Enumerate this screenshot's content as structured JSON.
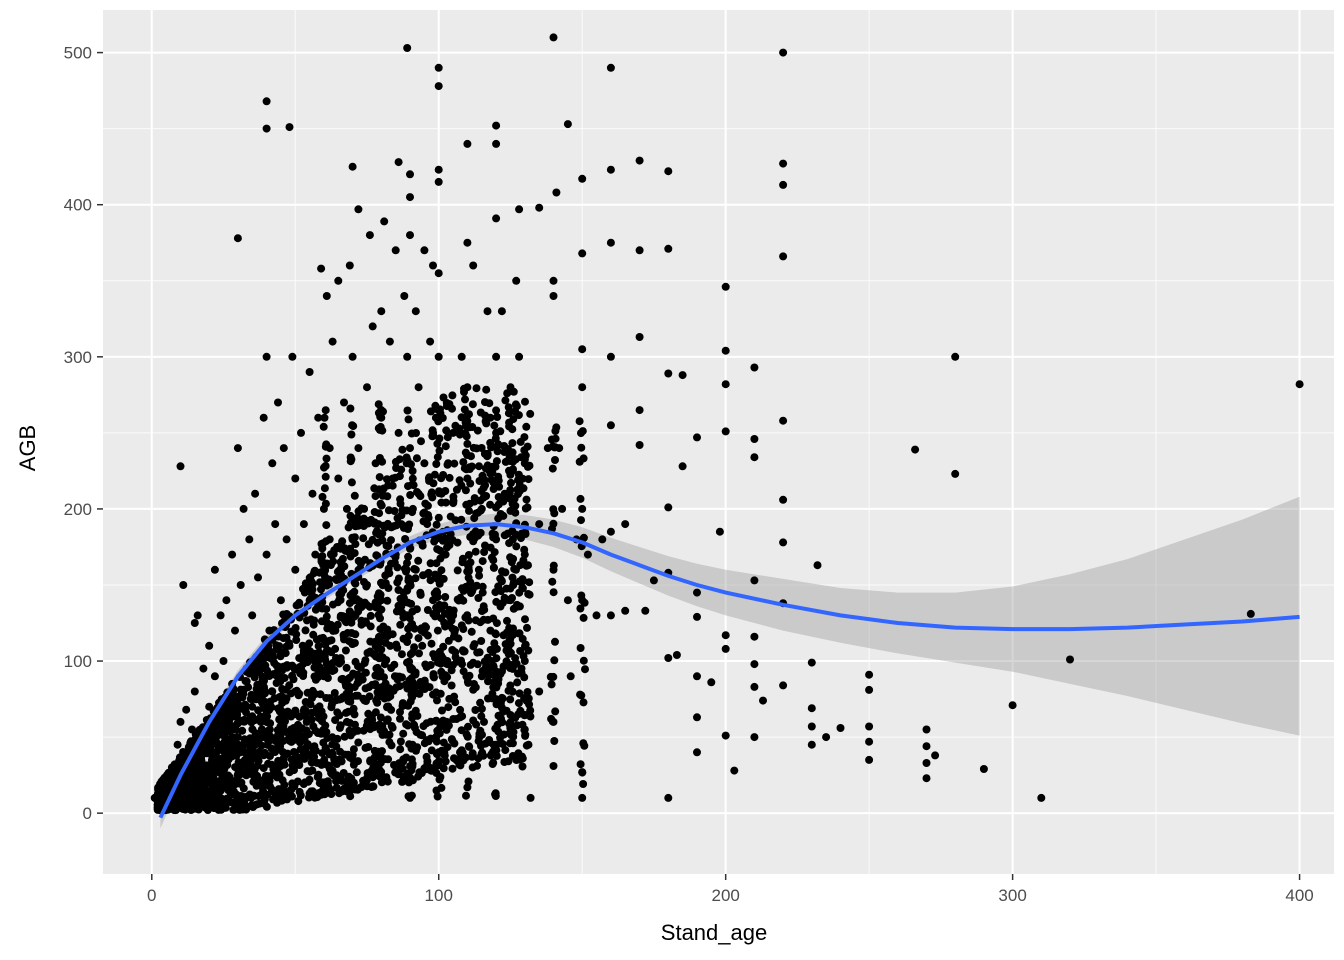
{
  "chart_data": {
    "type": "scatter",
    "title": "",
    "xlabel": "Stand_age",
    "ylabel": "AGB",
    "xlim": [
      -17,
      412
    ],
    "ylim": [
      -40,
      528
    ],
    "x_ticks": [
      0,
      100,
      200,
      300,
      400
    ],
    "x_tick_labels": [
      "0",
      "100",
      "200",
      "300",
      "400"
    ],
    "y_ticks": [
      0,
      100,
      200,
      300,
      400,
      500
    ],
    "y_tick_labels": [
      "0",
      "100",
      "200",
      "300",
      "400",
      "500"
    ],
    "grid": true,
    "legend": "none",
    "colors": {
      "panel_background": "#ebebeb",
      "grid_major": "#ffffff",
      "points": "#000000",
      "smooth_line": "#3366ff",
      "confidence_band": "#999999"
    },
    "smooth_curve": [
      {
        "x": 3,
        "y": -3,
        "ci_low": -10,
        "ci_high": 5
      },
      {
        "x": 10,
        "y": 25,
        "ci_low": 20,
        "ci_high": 30
      },
      {
        "x": 20,
        "y": 60,
        "ci_low": 56,
        "ci_high": 64
      },
      {
        "x": 30,
        "y": 90,
        "ci_low": 87,
        "ci_high": 94
      },
      {
        "x": 40,
        "y": 113,
        "ci_low": 110,
        "ci_high": 117
      },
      {
        "x": 50,
        "y": 130,
        "ci_low": 127,
        "ci_high": 133
      },
      {
        "x": 60,
        "y": 143,
        "ci_low": 140,
        "ci_high": 146
      },
      {
        "x": 70,
        "y": 155,
        "ci_low": 152,
        "ci_high": 158
      },
      {
        "x": 80,
        "y": 167,
        "ci_low": 163,
        "ci_high": 170
      },
      {
        "x": 90,
        "y": 178,
        "ci_low": 174,
        "ci_high": 182
      },
      {
        "x": 100,
        "y": 185,
        "ci_low": 180,
        "ci_high": 190
      },
      {
        "x": 110,
        "y": 189,
        "ci_low": 183,
        "ci_high": 195
      },
      {
        "x": 120,
        "y": 190,
        "ci_low": 182,
        "ci_high": 197
      },
      {
        "x": 130,
        "y": 188,
        "ci_low": 180,
        "ci_high": 196
      },
      {
        "x": 140,
        "y": 184,
        "ci_low": 175,
        "ci_high": 193
      },
      {
        "x": 150,
        "y": 178,
        "ci_low": 168,
        "ci_high": 188
      },
      {
        "x": 160,
        "y": 170,
        "ci_low": 159,
        "ci_high": 181
      },
      {
        "x": 170,
        "y": 163,
        "ci_low": 151,
        "ci_high": 175
      },
      {
        "x": 180,
        "y": 156,
        "ci_low": 143,
        "ci_high": 169
      },
      {
        "x": 190,
        "y": 150,
        "ci_low": 136,
        "ci_high": 164
      },
      {
        "x": 200,
        "y": 145,
        "ci_low": 130,
        "ci_high": 160
      },
      {
        "x": 220,
        "y": 137,
        "ci_low": 120,
        "ci_high": 154
      },
      {
        "x": 240,
        "y": 130,
        "ci_low": 112,
        "ci_high": 148
      },
      {
        "x": 260,
        "y": 125,
        "ci_low": 105,
        "ci_high": 145
      },
      {
        "x": 280,
        "y": 122,
        "ci_low": 99,
        "ci_high": 145
      },
      {
        "x": 300,
        "y": 121,
        "ci_low": 93,
        "ci_high": 149
      },
      {
        "x": 320,
        "y": 121,
        "ci_low": 85,
        "ci_high": 157
      },
      {
        "x": 340,
        "y": 122,
        "ci_low": 77,
        "ci_high": 167
      },
      {
        "x": 360,
        "y": 124,
        "ci_low": 68,
        "ci_high": 180
      },
      {
        "x": 380,
        "y": 126,
        "ci_low": 59,
        "ci_high": 193
      },
      {
        "x": 400,
        "y": 129,
        "ci_low": 51,
        "ci_high": 208
      }
    ],
    "points": [
      [
        1,
        10
      ],
      [
        3,
        3
      ],
      [
        5,
        8
      ],
      [
        6,
        20
      ],
      [
        7,
        30
      ],
      [
        8,
        15
      ],
      [
        9,
        45
      ],
      [
        10,
        228
      ],
      [
        10,
        60
      ],
      [
        11,
        150
      ],
      [
        12,
        68
      ],
      [
        12,
        40
      ],
      [
        13,
        20
      ],
      [
        14,
        55
      ],
      [
        15,
        80
      ],
      [
        15,
        125
      ],
      [
        16,
        130
      ],
      [
        17,
        50
      ],
      [
        18,
        10
      ],
      [
        18,
        95
      ],
      [
        20,
        70
      ],
      [
        20,
        110
      ],
      [
        21,
        35
      ],
      [
        22,
        160
      ],
      [
        22,
        90
      ],
      [
        24,
        130
      ],
      [
        25,
        60
      ],
      [
        25,
        100
      ],
      [
        26,
        140
      ],
      [
        27,
        20
      ],
      [
        28,
        170
      ],
      [
        28,
        85
      ],
      [
        29,
        120
      ],
      [
        30,
        240
      ],
      [
        30,
        50
      ],
      [
        30,
        378
      ],
      [
        31,
        150
      ],
      [
        32,
        200
      ],
      [
        33,
        95
      ],
      [
        34,
        180
      ],
      [
        35,
        130
      ],
      [
        35,
        70
      ],
      [
        36,
        210
      ],
      [
        37,
        155
      ],
      [
        38,
        100
      ],
      [
        38,
        60
      ],
      [
        39,
        260
      ],
      [
        40,
        170
      ],
      [
        40,
        450
      ],
      [
        40,
        468
      ],
      [
        40,
        300
      ],
      [
        41,
        120
      ],
      [
        42,
        230
      ],
      [
        42,
        80
      ],
      [
        43,
        190
      ],
      [
        44,
        270
      ],
      [
        45,
        140
      ],
      [
        45,
        95
      ],
      [
        46,
        240
      ],
      [
        47,
        180
      ],
      [
        48,
        451
      ],
      [
        48,
        110
      ],
      [
        49,
        300
      ],
      [
        50,
        160
      ],
      [
        50,
        220
      ],
      [
        50,
        80
      ],
      [
        51,
        130
      ],
      [
        52,
        250
      ],
      [
        53,
        190
      ],
      [
        54,
        60
      ],
      [
        55,
        290
      ],
      [
        55,
        140
      ],
      [
        56,
        210
      ],
      [
        57,
        170
      ],
      [
        58,
        260
      ],
      [
        58,
        100
      ],
      [
        59,
        358
      ],
      [
        60,
        200
      ],
      [
        60,
        150
      ],
      [
        60,
        90
      ],
      [
        61,
        340
      ],
      [
        62,
        240
      ],
      [
        62,
        180
      ],
      [
        63,
        310
      ],
      [
        64,
        120
      ],
      [
        65,
        350
      ],
      [
        65,
        220
      ],
      [
        66,
        160
      ],
      [
        67,
        270
      ],
      [
        68,
        200
      ],
      [
        68,
        60
      ],
      [
        69,
        360
      ],
      [
        70,
        425
      ],
      [
        70,
        300
      ],
      [
        70,
        180
      ],
      [
        71,
        130
      ],
      [
        72,
        397
      ],
      [
        72,
        240
      ],
      [
        73,
        90
      ],
      [
        74,
        200
      ],
      [
        75,
        280
      ],
      [
        75,
        150
      ],
      [
        76,
        380
      ],
      [
        77,
        320
      ],
      [
        78,
        110
      ],
      [
        78,
        230
      ],
      [
        79,
        190
      ],
      [
        80,
        330
      ],
      [
        80,
        260
      ],
      [
        80,
        140
      ],
      [
        81,
        389
      ],
      [
        82,
        70
      ],
      [
        83,
        310
      ],
      [
        84,
        220
      ],
      [
        85,
        170
      ],
      [
        85,
        370
      ],
      [
        86,
        428
      ],
      [
        86,
        250
      ],
      [
        87,
        190
      ],
      [
        88,
        130
      ],
      [
        88,
        340
      ],
      [
        89,
        503
      ],
      [
        89,
        300
      ],
      [
        90,
        405
      ],
      [
        90,
        420
      ],
      [
        90,
        380
      ],
      [
        90,
        240
      ],
      [
        90,
        10
      ],
      [
        91,
        200
      ],
      [
        92,
        160
      ],
      [
        92,
        330
      ],
      [
        93,
        280
      ],
      [
        94,
        120
      ],
      [
        95,
        370
      ],
      [
        95,
        230
      ],
      [
        96,
        190
      ],
      [
        97,
        310
      ],
      [
        98,
        140
      ],
      [
        98,
        360
      ],
      [
        99,
        260
      ],
      [
        100,
        490
      ],
      [
        100,
        478
      ],
      [
        100,
        423
      ],
      [
        100,
        415
      ],
      [
        100,
        355
      ],
      [
        100,
        300
      ],
      [
        100,
        40
      ],
      [
        101,
        210
      ],
      [
        102,
        170
      ],
      [
        103,
        100
      ],
      [
        105,
        130
      ],
      [
        105,
        250
      ],
      [
        108,
        300
      ],
      [
        110,
        440
      ],
      [
        110,
        375
      ],
      [
        110,
        280
      ],
      [
        110,
        220
      ],
      [
        110,
        17
      ],
      [
        112,
        360
      ],
      [
        114,
        160
      ],
      [
        115,
        200
      ],
      [
        115,
        90
      ],
      [
        117,
        330
      ],
      [
        118,
        260
      ],
      [
        118,
        120
      ],
      [
        120,
        452
      ],
      [
        120,
        440
      ],
      [
        120,
        391
      ],
      [
        120,
        300
      ],
      [
        120,
        250
      ],
      [
        120,
        180
      ],
      [
        120,
        75
      ],
      [
        122,
        330
      ],
      [
        123,
        210
      ],
      [
        125,
        280
      ],
      [
        125,
        140
      ],
      [
        126,
        150
      ],
      [
        127,
        350
      ],
      [
        128,
        397
      ],
      [
        128,
        300
      ],
      [
        130,
        230
      ],
      [
        130,
        170
      ],
      [
        130,
        100
      ],
      [
        130,
        55
      ],
      [
        132,
        10
      ],
      [
        135,
        398
      ],
      [
        135,
        190
      ],
      [
        135,
        80
      ],
      [
        138,
        240
      ],
      [
        140,
        510
      ],
      [
        140,
        350
      ],
      [
        140,
        340
      ],
      [
        140,
        160
      ],
      [
        140,
        60
      ],
      [
        140,
        31
      ],
      [
        141,
        408
      ],
      [
        142,
        240
      ],
      [
        143,
        200
      ],
      [
        145,
        453
      ],
      [
        145,
        140
      ],
      [
        146,
        90
      ],
      [
        148,
        180
      ],
      [
        150,
        417
      ],
      [
        150,
        368
      ],
      [
        150,
        305
      ],
      [
        150,
        280
      ],
      [
        150,
        200
      ],
      [
        150,
        140
      ],
      [
        150,
        10
      ],
      [
        150,
        27
      ],
      [
        152,
        170
      ],
      [
        155,
        130
      ],
      [
        157,
        180
      ],
      [
        160,
        490
      ],
      [
        160,
        423
      ],
      [
        160,
        375
      ],
      [
        160,
        300
      ],
      [
        160,
        255
      ],
      [
        160,
        185
      ],
      [
        160,
        130
      ],
      [
        165,
        190
      ],
      [
        165,
        133
      ],
      [
        170,
        429
      ],
      [
        170,
        370
      ],
      [
        170,
        313
      ],
      [
        170,
        265
      ],
      [
        170,
        242
      ],
      [
        172,
        133
      ],
      [
        175,
        153
      ],
      [
        180,
        422
      ],
      [
        180,
        371
      ],
      [
        180,
        289
      ],
      [
        180,
        201
      ],
      [
        180,
        158
      ],
      [
        180,
        102
      ],
      [
        180,
        10
      ],
      [
        183,
        104
      ],
      [
        185,
        288
      ],
      [
        185,
        228
      ],
      [
        190,
        247
      ],
      [
        190,
        145
      ],
      [
        190,
        129
      ],
      [
        190,
        90
      ],
      [
        190,
        63
      ],
      [
        190,
        40
      ],
      [
        195,
        86
      ],
      [
        198,
        185
      ],
      [
        200,
        346
      ],
      [
        200,
        304
      ],
      [
        200,
        282
      ],
      [
        200,
        251
      ],
      [
        200,
        117
      ],
      [
        200,
        108
      ],
      [
        200,
        51
      ],
      [
        203,
        28
      ],
      [
        210,
        293
      ],
      [
        210,
        246
      ],
      [
        210,
        234
      ],
      [
        210,
        153
      ],
      [
        210,
        116
      ],
      [
        210,
        98
      ],
      [
        210,
        83
      ],
      [
        210,
        50
      ],
      [
        213,
        74
      ],
      [
        220,
        500
      ],
      [
        220,
        427
      ],
      [
        220,
        413
      ],
      [
        220,
        366
      ],
      [
        220,
        258
      ],
      [
        220,
        206
      ],
      [
        220,
        178
      ],
      [
        220,
        138
      ],
      [
        220,
        84
      ],
      [
        230,
        99
      ],
      [
        230,
        69
      ],
      [
        230,
        57
      ],
      [
        230,
        45
      ],
      [
        232,
        163
      ],
      [
        235,
        50
      ],
      [
        240,
        56
      ],
      [
        250,
        91
      ],
      [
        250,
        81
      ],
      [
        250,
        57
      ],
      [
        250,
        47
      ],
      [
        250,
        35
      ],
      [
        266,
        239
      ],
      [
        270,
        55
      ],
      [
        270,
        44
      ],
      [
        270,
        33
      ],
      [
        270,
        23
      ],
      [
        273,
        38
      ],
      [
        280,
        300
      ],
      [
        280,
        223
      ],
      [
        290,
        29
      ],
      [
        300,
        71
      ],
      [
        310,
        10
      ],
      [
        320,
        101
      ],
      [
        383,
        131
      ],
      [
        400,
        282
      ]
    ],
    "density_region": "dense cloud of points concentrated between Stand_age 0-155 and AGB 0-300"
  }
}
